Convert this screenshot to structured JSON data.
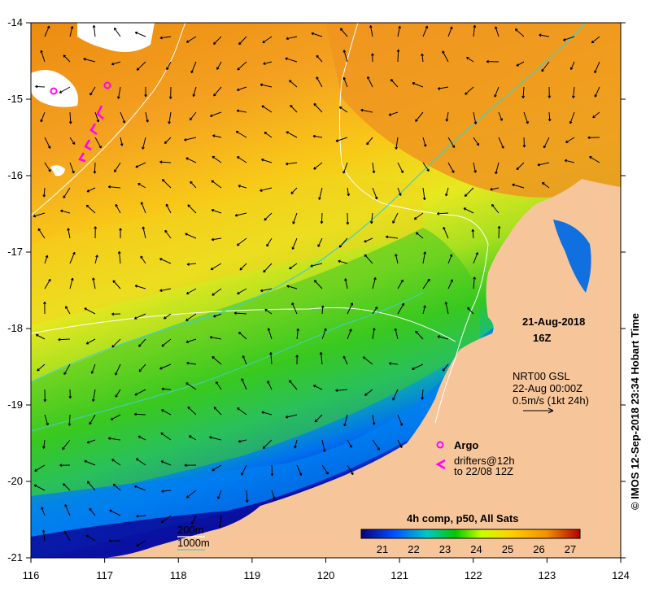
{
  "map": {
    "x_ticks": [
      "116",
      "117",
      "118",
      "119",
      "120",
      "121",
      "122",
      "123",
      "124"
    ],
    "y_ticks": [
      "-14",
      "-15",
      "-16",
      "-17",
      "-18",
      "-19",
      "-20",
      "-21"
    ],
    "date": "21-Aug-2018",
    "hour": "16Z",
    "vector_info": [
      "NRT00 GSL",
      "22-Aug 00:00Z",
      "0.5m/s (1kt 24h)"
    ],
    "legend": {
      "argo_label": "Argo",
      "drifters_label": "drifters@12h",
      "drifters_sub": "to 22/08 12Z",
      "isobath_200": "200m",
      "isobath_1000": "1000m"
    },
    "colorbar": {
      "title": "4h comp, p50, All Sats",
      "ticks": [
        "21",
        "22",
        "23",
        "24",
        "25",
        "26",
        "27"
      ],
      "colors": [
        "#0a0078",
        "#0050ff",
        "#00c8c8",
        "#00c800",
        "#c8ff00",
        "#ffd200",
        "#f09000",
        "#b40000"
      ]
    },
    "credit": "© IMOS 12-Sep-2018 23:34 Hobart Time",
    "colors": {
      "land": "#f7c59a",
      "isobath_200": "#ffffff",
      "isobath_1000": "#40d0c8",
      "marker": "#ff00ff"
    }
  }
}
